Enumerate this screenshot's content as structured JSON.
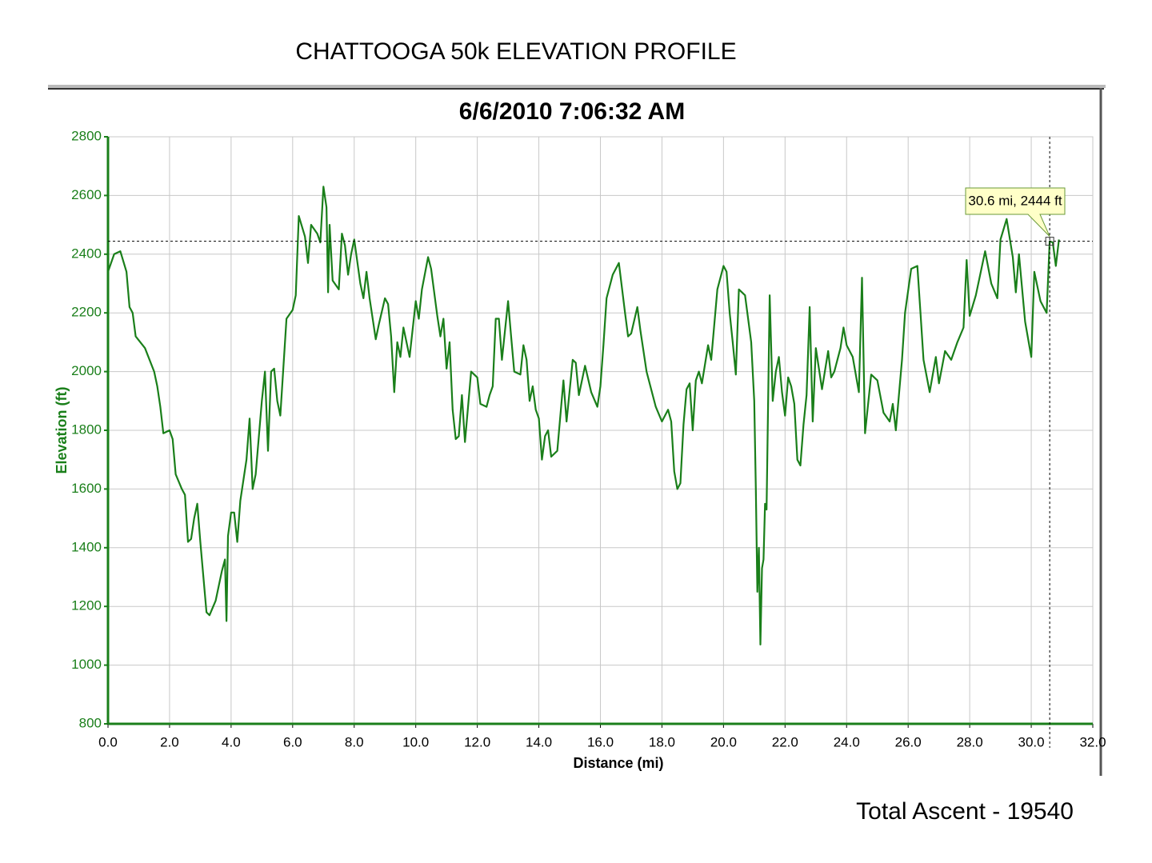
{
  "chart_data": {
    "type": "line",
    "page_title": "CHATTOOGA 50k ELEVATION PROFILE",
    "title": "6/6/2010 7:06:32 AM",
    "xlabel": "Distance (mi)",
    "ylabel": "Elevation (ft)",
    "annotation": "30.6 mi, 2444 ft",
    "crosshair": {
      "x": 30.6,
      "y": 2444
    },
    "footer": "Total Ascent - 19540",
    "xlim": [
      0,
      32
    ],
    "ylim": [
      800,
      2800
    ],
    "xticks": [
      {
        "value": 0,
        "label": "0.0"
      },
      {
        "value": 2,
        "label": "2.0"
      },
      {
        "value": 4,
        "label": "4.0"
      },
      {
        "value": 6,
        "label": "6.0"
      },
      {
        "value": 8,
        "label": "8.0"
      },
      {
        "value": 10,
        "label": "10.0"
      },
      {
        "value": 12,
        "label": "12.0"
      },
      {
        "value": 14,
        "label": "14.0"
      },
      {
        "value": 16,
        "label": "16.0"
      },
      {
        "value": 18,
        "label": "18.0"
      },
      {
        "value": 20,
        "label": "20.0"
      },
      {
        "value": 22,
        "label": "22.0"
      },
      {
        "value": 24,
        "label": "24.0"
      },
      {
        "value": 26,
        "label": "26.0"
      },
      {
        "value": 28,
        "label": "28.0"
      },
      {
        "value": 30,
        "label": "30.0"
      },
      {
        "value": 32,
        "label": "32.0"
      }
    ],
    "yticks": [
      800,
      1000,
      1200,
      1400,
      1600,
      1800,
      2000,
      2200,
      2400,
      2600,
      2800
    ],
    "grid": true,
    "x": [
      0,
      0.2,
      0.4,
      0.6,
      0.7,
      0.8,
      0.9,
      1.2,
      1.5,
      1.6,
      1.7,
      1.8,
      2.0,
      2.1,
      2.2,
      2.4,
      2.5,
      2.6,
      2.7,
      2.8,
      2.9,
      3.0,
      3.2,
      3.3,
      3.5,
      3.7,
      3.8,
      3.85,
      3.9,
      4.0,
      4.1,
      4.2,
      4.3,
      4.5,
      4.6,
      4.7,
      4.8,
      5.0,
      5.1,
      5.2,
      5.3,
      5.4,
      5.5,
      5.6,
      5.8,
      6.0,
      6.1,
      6.2,
      6.4,
      6.5,
      6.6,
      6.8,
      6.9,
      7.0,
      7.1,
      7.15,
      7.2,
      7.3,
      7.5,
      7.6,
      7.7,
      7.8,
      7.9,
      8.0,
      8.2,
      8.3,
      8.4,
      8.5,
      8.7,
      8.8,
      9.0,
      9.1,
      9.2,
      9.3,
      9.4,
      9.5,
      9.6,
      9.8,
      10.0,
      10.1,
      10.2,
      10.4,
      10.5,
      10.7,
      10.8,
      10.9,
      11.0,
      11.1,
      11.2,
      11.3,
      11.4,
      11.5,
      11.6,
      11.8,
      12.0,
      12.1,
      12.3,
      12.4,
      12.5,
      12.6,
      12.7,
      12.8,
      13.0,
      13.1,
      13.2,
      13.4,
      13.5,
      13.6,
      13.7,
      13.8,
      13.9,
      14.0,
      14.1,
      14.2,
      14.3,
      14.4,
      14.6,
      14.8,
      14.9,
      15.1,
      15.2,
      15.3,
      15.5,
      15.7,
      15.9,
      16.0,
      16.1,
      16.2,
      16.4,
      16.6,
      16.8,
      16.9,
      17.0,
      17.2,
      17.3,
      17.5,
      17.8,
      18.0,
      18.2,
      18.3,
      18.4,
      18.5,
      18.6,
      18.7,
      18.8,
      18.9,
      19.0,
      19.1,
      19.2,
      19.3,
      19.5,
      19.6,
      19.8,
      20.0,
      20.1,
      20.2,
      20.3,
      20.4,
      20.5,
      20.7,
      20.9,
      21.0,
      21.05,
      21.1,
      21.15,
      21.2,
      21.25,
      21.3,
      21.35,
      21.4,
      21.5,
      21.6,
      21.7,
      21.8,
      21.9,
      22.0,
      22.1,
      22.2,
      22.3,
      22.4,
      22.5,
      22.6,
      22.7,
      22.8,
      22.9,
      23.0,
      23.2,
      23.4,
      23.5,
      23.6,
      23.8,
      23.9,
      24.0,
      24.2,
      24.4,
      24.5,
      24.6,
      24.8,
      25.0,
      25.2,
      25.4,
      25.5,
      25.6,
      25.8,
      25.9,
      26.1,
      26.3,
      26.4,
      26.5,
      26.7,
      26.9,
      27.0,
      27.2,
      27.4,
      27.6,
      27.8,
      27.9,
      28.0,
      28.2,
      28.5,
      28.7,
      28.9,
      29.0,
      29.2,
      29.4,
      29.5,
      29.6,
      29.8,
      30.0,
      30.1,
      30.3,
      30.5,
      30.6,
      30.7,
      30.8,
      30.9
    ],
    "series": [
      {
        "name": "Elevation",
        "color": "#1a7f1a",
        "values": [
          2340,
          2400,
          2410,
          2340,
          2220,
          2200,
          2120,
          2080,
          2000,
          1950,
          1880,
          1790,
          1800,
          1770,
          1650,
          1600,
          1580,
          1420,
          1430,
          1500,
          1550,
          1420,
          1180,
          1170,
          1220,
          1320,
          1360,
          1150,
          1440,
          1520,
          1520,
          1420,
          1560,
          1700,
          1840,
          1600,
          1650,
          1900,
          2000,
          1730,
          2000,
          2010,
          1900,
          1850,
          2180,
          2210,
          2260,
          2530,
          2460,
          2370,
          2500,
          2470,
          2440,
          2630,
          2560,
          2270,
          2500,
          2310,
          2280,
          2470,
          2430,
          2330,
          2400,
          2450,
          2300,
          2250,
          2340,
          2250,
          2110,
          2160,
          2250,
          2230,
          2120,
          1930,
          2100,
          2050,
          2150,
          2050,
          2240,
          2180,
          2280,
          2390,
          2350,
          2190,
          2120,
          2180,
          2010,
          2100,
          1870,
          1770,
          1780,
          1920,
          1760,
          2000,
          1980,
          1890,
          1880,
          1920,
          1950,
          2180,
          2180,
          2040,
          2240,
          2120,
          2000,
          1990,
          2090,
          2040,
          1900,
          1950,
          1870,
          1840,
          1700,
          1780,
          1800,
          1710,
          1730,
          1970,
          1830,
          2040,
          2030,
          1920,
          2020,
          1930,
          1880,
          1950,
          2090,
          2250,
          2330,
          2370,
          2200,
          2120,
          2130,
          2220,
          2140,
          2000,
          1880,
          1830,
          1870,
          1830,
          1660,
          1600,
          1620,
          1820,
          1940,
          1960,
          1800,
          1970,
          2000,
          1960,
          2090,
          2040,
          2280,
          2360,
          2340,
          2200,
          2100,
          1990,
          2280,
          2260,
          2100,
          1900,
          1600,
          1250,
          1400,
          1070,
          1330,
          1360,
          1550,
          1530,
          2260,
          1900,
          2000,
          2050,
          1930,
          1850,
          1980,
          1950,
          1890,
          1700,
          1680,
          1820,
          1920,
          2220,
          1830,
          2080,
          1940,
          2070,
          1980,
          2000,
          2080,
          2150,
          2090,
          2050,
          1930,
          2320,
          1790,
          1990,
          1970,
          1860,
          1830,
          1890,
          1800,
          2040,
          2200,
          2350,
          2360,
          2200,
          2040,
          1930,
          2050,
          1960,
          2070,
          2040,
          2100,
          2150,
          2380,
          2190,
          2260,
          2410,
          2300,
          2250,
          2450,
          2520,
          2390,
          2270,
          2400,
          2170,
          2050,
          2340,
          2240,
          2200,
          2444,
          2440,
          2360,
          2450
        ]
      }
    ]
  }
}
